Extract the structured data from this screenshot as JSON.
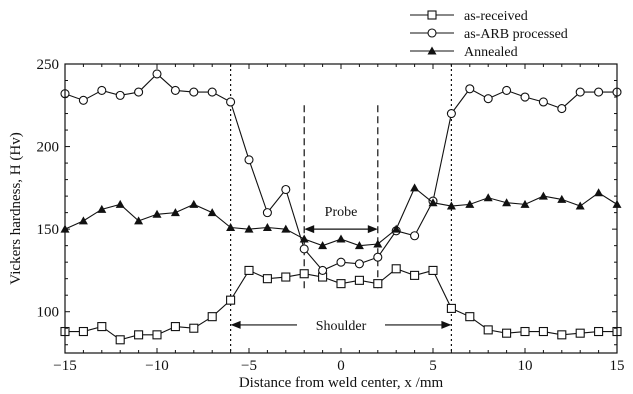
{
  "chart_data": {
    "type": "line",
    "xlabel": "Distance from weld center, x /mm",
    "ylabel": "Vickers hardness, H (Hv)",
    "xlim": [
      -15,
      15
    ],
    "ylim": [
      75,
      250
    ],
    "xticks": [
      -15,
      -10,
      -5,
      0,
      5,
      10,
      15
    ],
    "yticks": [
      100,
      150,
      200,
      250
    ],
    "legend_position": "top-right, above plot",
    "series": [
      {
        "name": "as-received",
        "marker": "square",
        "x": [
          -15,
          -14,
          -13,
          -12,
          -11,
          -10,
          -9,
          -8,
          -7,
          -6,
          -5,
          -4,
          -3,
          -2,
          -1,
          0,
          1,
          2,
          3,
          4,
          5,
          6,
          7,
          8,
          9,
          10,
          11,
          12,
          13,
          14,
          15
        ],
        "values": [
          88,
          88,
          91,
          83,
          86,
          86,
          91,
          90,
          97,
          107,
          125,
          120,
          121,
          123,
          121,
          117,
          119,
          117,
          126,
          122,
          125,
          102,
          97,
          89,
          87,
          88,
          88,
          86,
          87,
          88,
          88
        ]
      },
      {
        "name": "as-ARB processed",
        "marker": "circle",
        "x": [
          -15,
          -14,
          -13,
          -12,
          -11,
          -10,
          -9,
          -8,
          -7,
          -6,
          -5,
          -4,
          -3,
          -2,
          -1,
          0,
          1,
          2,
          3,
          4,
          5,
          6,
          7,
          8,
          9,
          10,
          11,
          12,
          13,
          14,
          15
        ],
        "values": [
          232,
          228,
          234,
          231,
          233,
          244,
          234,
          233,
          233,
          227,
          192,
          160,
          174,
          138,
          125,
          130,
          129,
          133,
          149,
          146,
          167,
          220,
          235,
          229,
          234,
          230,
          227,
          223,
          233,
          233,
          233
        ]
      },
      {
        "name": "Annealed",
        "marker": "triangle",
        "x": [
          -15,
          -14,
          -13,
          -12,
          -11,
          -10,
          -9,
          -8,
          -7,
          -6,
          -5,
          -4,
          -3,
          -2,
          -1,
          0,
          1,
          2,
          3,
          4,
          5,
          6,
          7,
          8,
          9,
          10,
          11,
          12,
          13,
          14,
          15
        ],
        "values": [
          150,
          155,
          162,
          165,
          155,
          159,
          160,
          165,
          160,
          151,
          150,
          151,
          150,
          144,
          140,
          144,
          140,
          141,
          150,
          175,
          166,
          164,
          165,
          169,
          166,
          165,
          170,
          168,
          164,
          172,
          165
        ]
      }
    ],
    "annotations": {
      "probe_label": "Probe",
      "shoulder_label": "Shoulder",
      "probe_x": [
        -2,
        2
      ],
      "shoulder_x": [
        -6,
        6
      ],
      "probe_arrow_y": 150,
      "shoulder_arrow_y": 92
    }
  }
}
